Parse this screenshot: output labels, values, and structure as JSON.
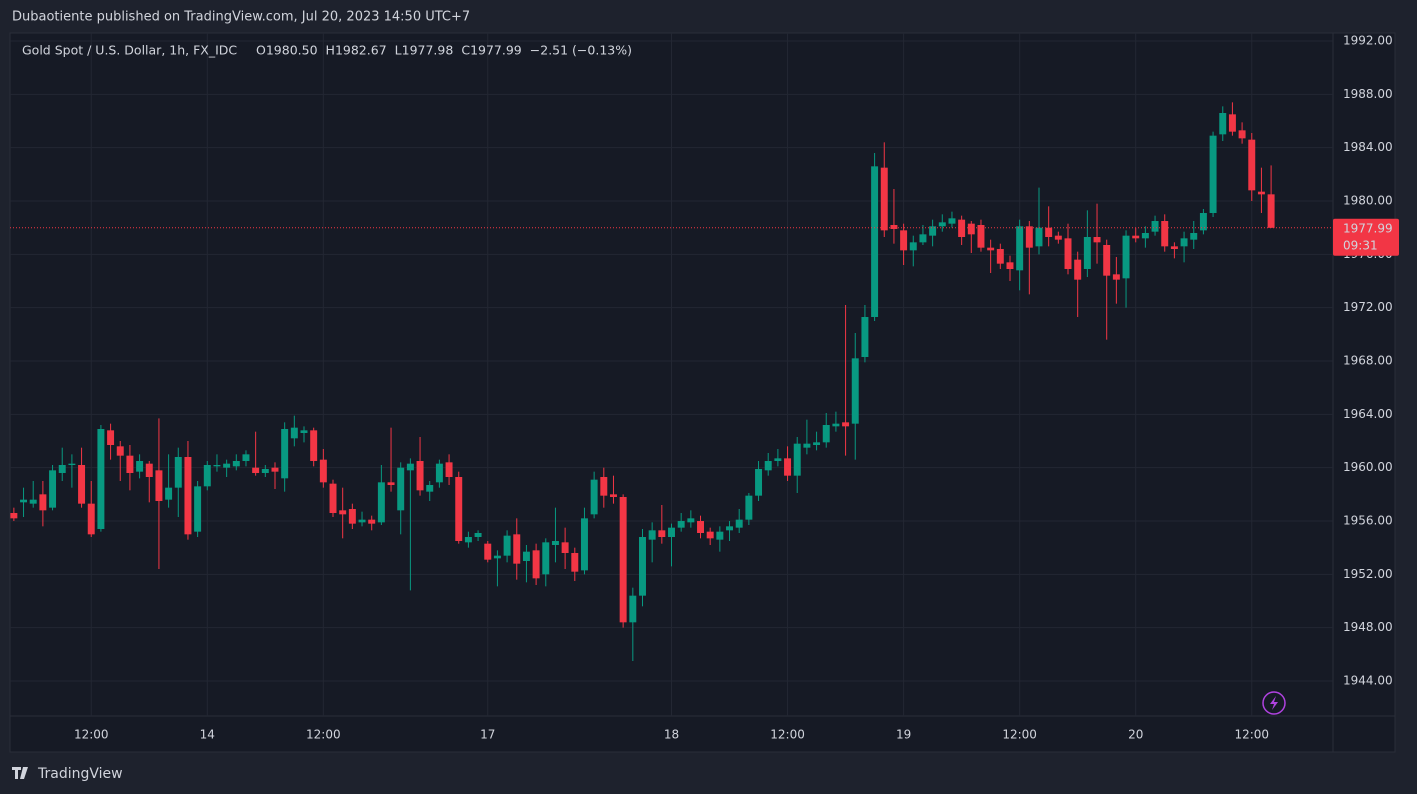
{
  "publisher": "Dubaotiente published on TradingView.com, Jul 20, 2023 14:50 UTC+7",
  "brand": "TradingView",
  "chart_data": {
    "type": "candlestick",
    "symbol": "Gold Spot / U.S. Dollar, 1h, FX_IDC",
    "ohlc_header": [
      {
        "key": "O",
        "text": "1980.50"
      },
      {
        "key": "H",
        "text": "1982.67"
      },
      {
        "key": "L",
        "text": "1977.98"
      },
      {
        "key": "C",
        "text": "1977.99"
      }
    ],
    "change": "−2.51 (−0.13%)",
    "up_color": "#089981",
    "down_color": "#f23645",
    "open": [
      1956.6,
      1957.4,
      1957.3,
      1958,
      1957,
      1959.6,
      1960.2,
      1960.2,
      1957.3,
      1955.4,
      1962.8,
      1961.6,
      1960.9,
      1959.7,
      1960.3,
      1959.8,
      1957.6,
      1958.5,
      1960.8,
      1955.2,
      1958.6,
      1960.1,
      1960,
      1960.1,
      1960.5,
      1960,
      1959.6,
      1960,
      1959.2,
      1962.2,
      1962.6,
      1962.8,
      1960.6,
      1958.8,
      1956.8,
      1956.9,
      1955.9,
      1956.1,
      1955.9,
      1958.9,
      1956.8,
      1959.8,
      1960.5,
      1958.2,
      1958.9,
      1960.4,
      1959.3,
      1954.4,
      1954.8,
      1954.3,
      1953.2,
      1953.4,
      1955,
      1953,
      1953.8,
      1952,
      1954.2,
      1954.4,
      1953.6,
      1952.3,
      1956.5,
      1959.3,
      1958,
      1957.8,
      1948.4,
      1950.4,
      1954.6,
      1955.3,
      1954.8,
      1955.5,
      1955.9,
      1956,
      1955.2,
      1954.6,
      1955.3,
      1955.5,
      1956.1,
      1957.9,
      1959.8,
      1960.5,
      1960.7,
      1959.4,
      1961.5,
      1961.7,
      1961.9,
      1963.1,
      1963.4,
      1963.3,
      1968.3,
      1971.3,
      1982.5,
      1978.2,
      1977.8,
      1976.3,
      1976.9,
      1977.4,
      1978.1,
      1978.3,
      1978.6,
      1978.3,
      1978.2,
      1976.5,
      1976.4,
      1975.4,
      1974.8,
      1978.1,
      1976.6,
      1978,
      1977.4,
      1977.2,
      1975.6,
      1974.9,
      1977.3,
      1976.7,
      1974.5,
      1974.2,
      1977.4,
      1977.2,
      1977.7,
      1978.5,
      1976.6,
      1976.6,
      1977.1,
      1977.8,
      1979.1,
      1985,
      1986.5,
      1985.3,
      1984.6,
      1980.7,
      1980.5
    ],
    "high": [
      1957,
      1958.5,
      1959,
      1959,
      1960.2,
      1961.5,
      1961,
      1961.5,
      1959,
      1963.2,
      1963.3,
      1962,
      1961.7,
      1961,
      1960.5,
      1963.7,
      1961,
      1961.5,
      1962,
      1959,
      1960.5,
      1961,
      1960.6,
      1961,
      1961.3,
      1962.7,
      1960.2,
      1960.4,
      1963.4,
      1963.9,
      1963.1,
      1963,
      1961.4,
      1959.1,
      1958.5,
      1957.3,
      1956.7,
      1956.4,
      1960.2,
      1963,
      1960.4,
      1960.7,
      1962.3,
      1959,
      1960.6,
      1961,
      1959.7,
      1955.2,
      1955.3,
      1954.5,
      1953.8,
      1955.3,
      1956.2,
      1954.2,
      1954.3,
      1954.7,
      1957,
      1955.5,
      1954,
      1957,
      1959.7,
      1960,
      1959.4,
      1958,
      1951,
      1955.4,
      1955.9,
      1957.2,
      1955.8,
      1956.6,
      1956.8,
      1956.4,
      1955.5,
      1955.6,
      1956,
      1956.9,
      1958.1,
      1960.5,
      1961.1,
      1961.4,
      1961.6,
      1962.3,
      1963.6,
      1962.7,
      1964.1,
      1964.2,
      1972.2,
      1970.1,
      1972.2,
      1983.6,
      1984.4,
      1980.9,
      1978.3,
      1977.4,
      1978.2,
      1978.6,
      1979,
      1979.2,
      1978.9,
      1978.5,
      1978.6,
      1977.1,
      1976.8,
      1975.9,
      1978.6,
      1978.5,
      1981,
      1979.6,
      1977.7,
      1978.3,
      1976.2,
      1979.3,
      1979.8,
      1977.1,
      1975.8,
      1977.8,
      1978,
      1978.1,
      1978.9,
      1979,
      1976.9,
      1977.7,
      1978.5,
      1979.4,
      1985.2,
      1987.1,
      1987.4,
      1985.9,
      1985.1,
      1982.5,
      1982.67
    ],
    "low": [
      1956,
      1956.3,
      1957,
      1955.6,
      1956.8,
      1959,
      1958.5,
      1957,
      1954.8,
      1955.2,
      1960.6,
      1959,
      1958.3,
      1959.2,
      1957.4,
      1952.4,
      1957,
      1956.3,
      1954.6,
      1954.8,
      1958.3,
      1959.7,
      1959.3,
      1959.8,
      1960.1,
      1959.4,
      1959.3,
      1958.4,
      1958.2,
      1961.6,
      1961.9,
      1960.1,
      1958.5,
      1956.3,
      1954.7,
      1955.4,
      1955.6,
      1955.3,
      1955.7,
      1958.2,
      1955,
      1950.8,
      1957.9,
      1957.5,
      1958.5,
      1958.7,
      1954.3,
      1954,
      1954.5,
      1952.9,
      1951.1,
      1952.9,
      1951.6,
      1951.4,
      1951.2,
      1951.1,
      1952.9,
      1952.4,
      1951.5,
      1952,
      1956.2,
      1957,
      1957.3,
      1948,
      1945.5,
      1949.6,
      1952.9,
      1954.3,
      1952.6,
      1955.2,
      1955.5,
      1954.7,
      1954.2,
      1953.7,
      1954.5,
      1955.1,
      1955.7,
      1957.5,
      1959.4,
      1960.1,
      1959,
      1958.1,
      1961,
      1961.3,
      1961.5,
      1962.7,
      1960.9,
      1960.6,
      1967.9,
      1971,
      1977.3,
      1976.8,
      1975.2,
      1975.1,
      1976.7,
      1976.6,
      1977.7,
      1978,
      1976.7,
      1976.1,
      1976.2,
      1974.6,
      1974.9,
      1974,
      1973.3,
      1973,
      1976,
      1976.6,
      1976.8,
      1974.5,
      1971.3,
      1974.3,
      1975.3,
      1969.6,
      1972.3,
      1972,
      1976.9,
      1976.5,
      1977.4,
      1976.2,
      1975.7,
      1975.4,
      1976.4,
      1977.5,
      1978.8,
      1984.5,
      1984.9,
      1984.3,
      1980,
      1979.1,
      1977.98
    ],
    "close": [
      1956.2,
      1957.6,
      1957.6,
      1956.8,
      1959.8,
      1960.2,
      1960.3,
      1957.3,
      1955,
      1962.9,
      1961.7,
      1960.9,
      1959.6,
      1960.5,
      1959.3,
      1957.5,
      1958.5,
      1960.8,
      1955,
      1958.6,
      1960.2,
      1960.2,
      1960.3,
      1960.5,
      1961,
      1959.6,
      1959.9,
      1959.7,
      1962.9,
      1963,
      1962.8,
      1960.5,
      1958.9,
      1956.6,
      1956.5,
      1955.8,
      1956.1,
      1955.8,
      1958.9,
      1958.7,
      1960,
      1960.3,
      1958.3,
      1958.7,
      1960.3,
      1959.3,
      1954.5,
      1954.8,
      1955.1,
      1953.1,
      1953.4,
      1954.9,
      1952.8,
      1953.7,
      1951.7,
      1954.4,
      1954.5,
      1953.6,
      1952.2,
      1956.2,
      1959.1,
      1957.9,
      1957.8,
      1948.4,
      1950.4,
      1954.8,
      1955.3,
      1954.8,
      1955.5,
      1956,
      1956.2,
      1955.1,
      1954.7,
      1955.2,
      1955.6,
      1956.1,
      1957.9,
      1959.9,
      1960.5,
      1960.7,
      1959.4,
      1961.8,
      1961.8,
      1961.9,
      1963.2,
      1963.3,
      1963.1,
      1968.2,
      1971.3,
      1982.6,
      1977.8,
      1977.9,
      1976.3,
      1976.9,
      1977.5,
      1978.1,
      1978.4,
      1978.7,
      1977.3,
      1977.5,
      1976.5,
      1976.3,
      1975.3,
      1974.9,
      1978.1,
      1976.5,
      1978,
      1977.3,
      1977.1,
      1974.9,
      1974.1,
      1977.3,
      1976.9,
      1974.4,
      1974.1,
      1977.4,
      1977.2,
      1977.6,
      1978.5,
      1976.6,
      1976.4,
      1977.2,
      1977.6,
      1979.1,
      1984.9,
      1986.6,
      1985.2,
      1984.7,
      1980.8,
      1980.5,
      1977.99
    ],
    "last_price": {
      "value": 1977.99,
      "label": "1977.99",
      "countdown": "09:31"
    },
    "xlim": [
      -0.4,
      136.4
    ],
    "xticks": [
      {
        "value": 8,
        "label": "12:00"
      },
      {
        "value": 20,
        "label": "14"
      },
      {
        "value": 32,
        "label": "12:00"
      },
      {
        "value": 49,
        "label": "17"
      },
      {
        "value": 68,
        "label": "18"
      },
      {
        "value": 80,
        "label": "12:00"
      },
      {
        "value": 92,
        "label": "19"
      },
      {
        "value": 104,
        "label": "12:00"
      },
      {
        "value": 116,
        "label": "20"
      },
      {
        "value": 128,
        "label": "12:00"
      }
    ],
    "ylim": [
      1941.375,
      1992.6
    ],
    "yticks": [
      {
        "value": 1944,
        "label": "1944.00"
      },
      {
        "value": 1948,
        "label": "1948.00"
      },
      {
        "value": 1952,
        "label": "1952.00"
      },
      {
        "value": 1956,
        "label": "1956.00"
      },
      {
        "value": 1960,
        "label": "1960.00"
      },
      {
        "value": 1964,
        "label": "1964.00"
      },
      {
        "value": 1968,
        "label": "1968.00"
      },
      {
        "value": 1972,
        "label": "1972.00"
      },
      {
        "value": 1976,
        "label": "1976.00"
      },
      {
        "value": 1980,
        "label": "1980.00"
      },
      {
        "value": 1984,
        "label": "1984.00"
      },
      {
        "value": 1988,
        "label": "1988.00"
      },
      {
        "value": 1992,
        "label": "1992.00"
      }
    ],
    "grid": true
  }
}
